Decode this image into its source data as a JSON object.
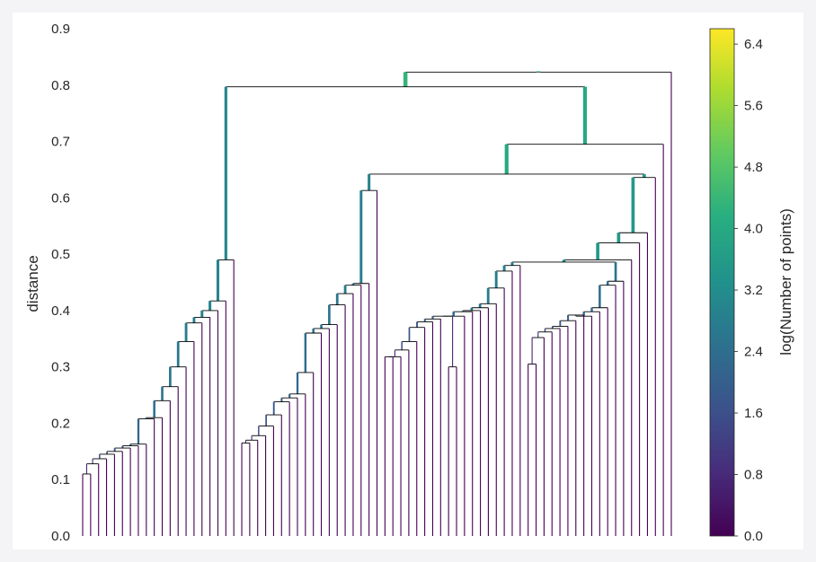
{
  "chart_data": {
    "type": "dendrogram",
    "title": "",
    "xlabel": "",
    "ylabel": "distance",
    "ylim": [
      0.0,
      0.9
    ],
    "yticks": [
      "0.0",
      "0.1",
      "0.2",
      "0.3",
      "0.4",
      "0.5",
      "0.6",
      "0.7",
      "0.8",
      "0.9"
    ],
    "colorbar": {
      "label": "log(Number of points)",
      "range": [
        0.0,
        6.6
      ],
      "ticks": [
        "0.0",
        "0.8",
        "1.6",
        "2.4",
        "3.2",
        "4.0",
        "4.8",
        "5.6",
        "6.4"
      ],
      "colormap": "viridis"
    },
    "grid": false,
    "leaves": 100,
    "merge_heights": {
      "root": 0.823,
      "second": 0.797,
      "left_cluster": 0.49,
      "right_cluster": 0.695,
      "middle_cluster": 0.64,
      "right_subcluster": 0.636
    }
  }
}
